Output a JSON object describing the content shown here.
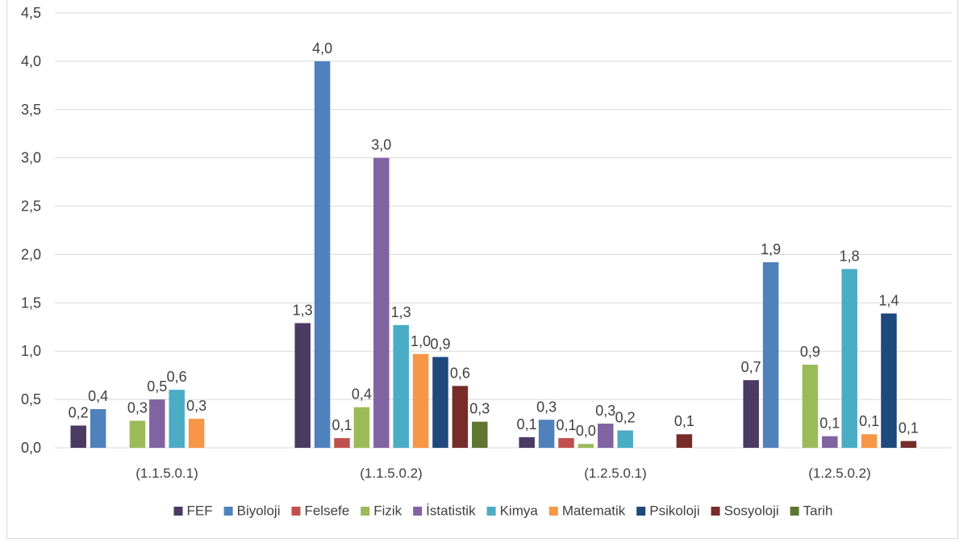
{
  "chart_data": {
    "type": "bar",
    "title": "",
    "xlabel": "",
    "ylabel": "",
    "ylim": [
      0,
      4.5
    ],
    "yticks": [
      "0,0",
      "0,5",
      "1,0",
      "1,5",
      "2,0",
      "2,5",
      "3,0",
      "3,5",
      "4,0",
      "4,5"
    ],
    "categories": [
      "(1.1.5.0.1)",
      "(1.1.5.0.2)",
      "(1.2.5.0.1)",
      "(1.2.5.0.2)"
    ],
    "grid": true,
    "legend_position": "bottom",
    "series": [
      {
        "name": "FEF",
        "color": "#4b3a62",
        "values": [
          0.23,
          1.29,
          0.11,
          0.7
        ],
        "labels": [
          "0,2",
          "1,3",
          "0,1",
          "0,7"
        ]
      },
      {
        "name": "Biyoloji",
        "color": "#4f81bd",
        "values": [
          0.4,
          4.0,
          0.29,
          1.92
        ],
        "labels": [
          "0,4",
          "4,0",
          "0,3",
          "1,9"
        ]
      },
      {
        "name": "Felsefe",
        "color": "#c0504d",
        "values": [
          null,
          0.1,
          0.1,
          null
        ],
        "labels": [
          "",
          "0,1",
          "0,1",
          ""
        ]
      },
      {
        "name": "Fizik",
        "color": "#9bbb59",
        "values": [
          0.28,
          0.42,
          0.04,
          0.86
        ],
        "labels": [
          "0,3",
          "0,4",
          "0,0",
          "0,9"
        ]
      },
      {
        "name": "İstatistik",
        "color": "#8064a2",
        "values": [
          0.5,
          3.0,
          0.25,
          0.12
        ],
        "labels": [
          "0,5",
          "3,0",
          "0,3",
          "0,1"
        ]
      },
      {
        "name": "Kimya",
        "color": "#4bacc6",
        "values": [
          0.6,
          1.27,
          0.18,
          1.85
        ],
        "labels": [
          "0,6",
          "1,3",
          "0,2",
          "1,8"
        ]
      },
      {
        "name": "Matematik",
        "color": "#f79646",
        "values": [
          0.3,
          0.97,
          null,
          0.14
        ],
        "labels": [
          "0,3",
          "1,0",
          "",
          "0,1"
        ]
      },
      {
        "name": "Psikoloji",
        "color": "#1f497d",
        "values": [
          null,
          0.94,
          null,
          1.39
        ],
        "labels": [
          "",
          "0,9",
          "",
          "1,4"
        ]
      },
      {
        "name": "Sosyoloji",
        "color": "#772c2a",
        "values": [
          null,
          0.64,
          0.14,
          0.07
        ],
        "labels": [
          "",
          "0,6",
          "0,1",
          "0,1"
        ]
      },
      {
        "name": "Tarih",
        "color": "#5f7530",
        "values": [
          null,
          0.27,
          null,
          null
        ],
        "labels": [
          "",
          "0,3",
          "",
          ""
        ]
      }
    ]
  }
}
